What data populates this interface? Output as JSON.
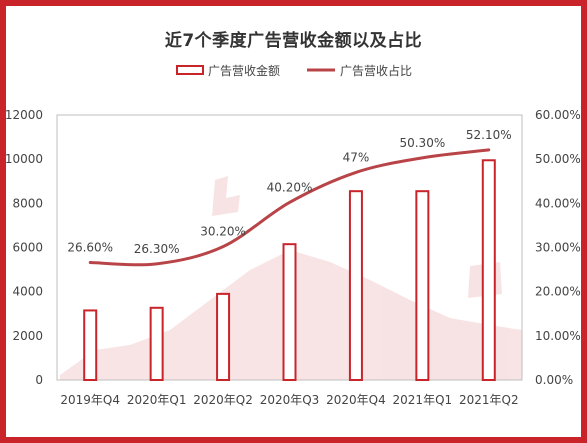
{
  "chart_data": {
    "type": "bar",
    "title": "近7个季度广告营收金额以及占比",
    "categories": [
      "2019年Q4",
      "2020年Q1",
      "2020年Q2",
      "2020年Q3",
      "2020年Q4",
      "2021年Q1",
      "2021年Q2"
    ],
    "series": [
      {
        "name": "广告营收金额",
        "type": "bar",
        "axis": "left",
        "color": "#c8242a",
        "fill": "#ffffff",
        "values": [
          3150,
          3270,
          3900,
          6150,
          8550,
          8550,
          9950
        ]
      },
      {
        "name": "广告营收占比",
        "type": "line",
        "axis": "right",
        "color": "#b84448",
        "values": [
          26.6,
          26.3,
          30.2,
          40.2,
          47,
          50.3,
          52.1
        ],
        "labels": [
          "26.60%",
          "26.30%",
          "30.20%",
          "40.20%",
          "47%",
          "50.30%",
          "52.10%"
        ]
      }
    ],
    "y_left": {
      "min": 0,
      "max": 12000,
      "ticks": [
        "0",
        "2000",
        "4000",
        "6000",
        "8000",
        "10000",
        "12000"
      ]
    },
    "y_right": {
      "min": 0,
      "max": 60,
      "ticks": [
        "0.00%",
        "10.00%",
        "20.00%",
        "30.00%",
        "40.00%",
        "50.00%",
        "60.00%"
      ]
    },
    "legend_position": "top-center",
    "grid": false,
    "frame_color": "#c8242a",
    "axis_color": "#bfbfbf"
  }
}
